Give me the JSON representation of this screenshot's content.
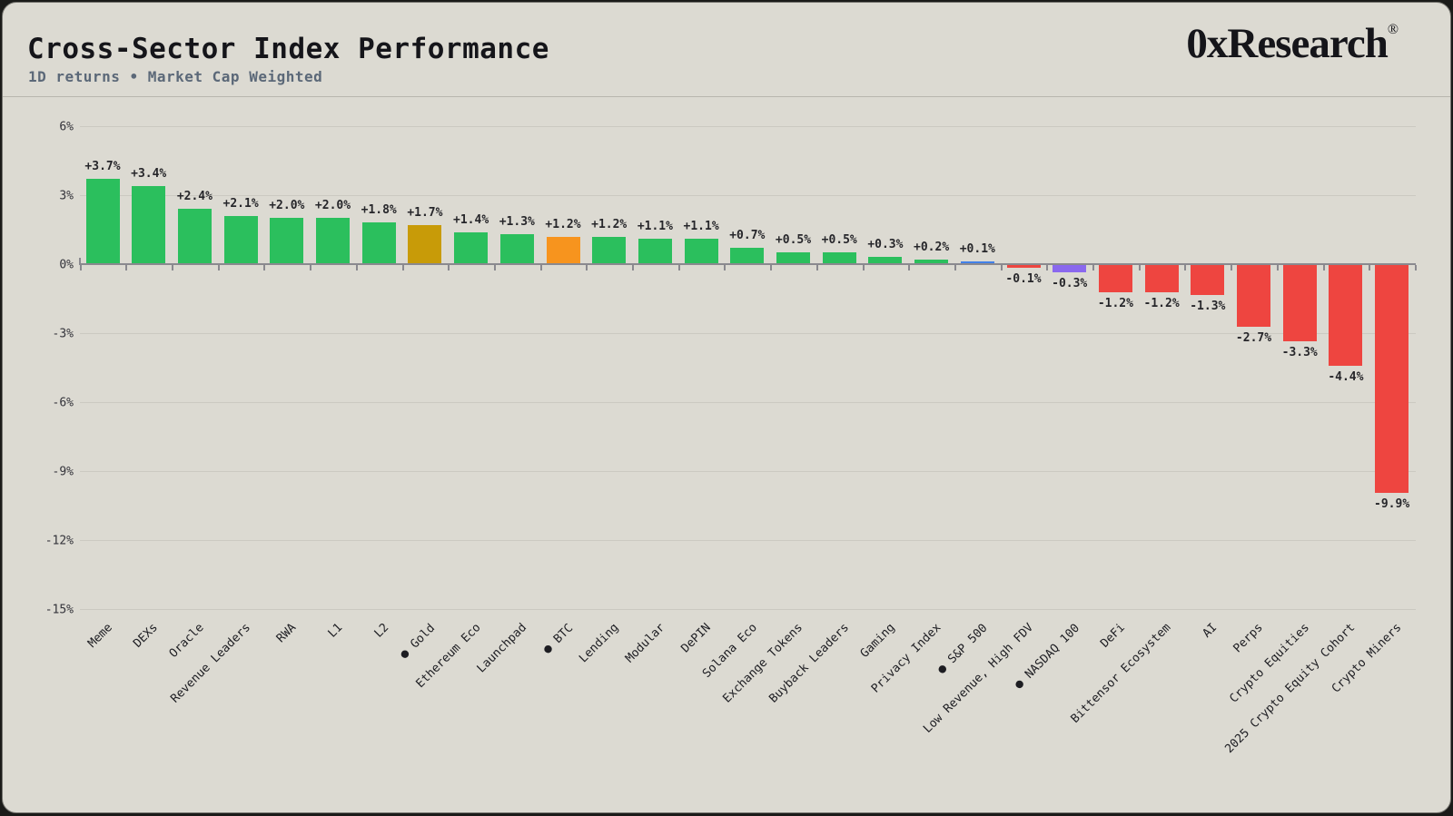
{
  "header": {
    "title": "Cross-Sector Index Performance",
    "subtitle": "1D returns • Market Cap Weighted",
    "brand": {
      "name": "0xResearch",
      "registered_mark": "®"
    }
  },
  "chart_data": {
    "type": "bar",
    "title": "Cross-Sector Index Performance",
    "subtitle": "1D returns • Market Cap Weighted",
    "unit": "percent_daily_return",
    "ylim": [
      -15,
      6
    ],
    "grid": true,
    "legend": "none",
    "benchmark_dot": "●",
    "palette": {
      "green": "#2bbf5d",
      "gold": "#c89b08",
      "orange": "#f7941e",
      "blue": "#4281e8",
      "purple": "#8a68ee",
      "red": "#ee4540",
      "background": "#dcdad2"
    },
    "yticks": [
      {
        "label": "6%",
        "value": 6
      },
      {
        "label": "3%",
        "value": 3
      },
      {
        "label": "0%",
        "value": 0
      },
      {
        "label": "-3%",
        "value": -3
      },
      {
        "label": "-6%",
        "value": -6
      },
      {
        "label": "-9%",
        "value": -9
      },
      {
        "label": "-12%",
        "value": -12
      },
      {
        "label": "-15%",
        "value": -15
      }
    ],
    "bars": [
      {
        "label": "Meme",
        "value": 3.7,
        "display": "+3.7%",
        "color": "green",
        "benchmark": false
      },
      {
        "label": "DEXs",
        "value": 3.4,
        "display": "+3.4%",
        "color": "green",
        "benchmark": false
      },
      {
        "label": "Oracle",
        "value": 2.4,
        "display": "+2.4%",
        "color": "green",
        "benchmark": false
      },
      {
        "label": "Revenue Leaders",
        "value": 2.1,
        "display": "+2.1%",
        "color": "green",
        "benchmark": false
      },
      {
        "label": "RWA",
        "value": 2.0,
        "display": "+2.0%",
        "color": "green",
        "benchmark": false
      },
      {
        "label": "L1",
        "value": 2.0,
        "display": "+2.0%",
        "color": "green",
        "benchmark": false
      },
      {
        "label": "L2",
        "value": 1.8,
        "display": "+1.8%",
        "color": "green",
        "benchmark": false
      },
      {
        "label": "Gold",
        "value": 1.7,
        "display": "+1.7%",
        "color": "gold",
        "benchmark": true
      },
      {
        "label": "Ethereum Eco",
        "value": 1.4,
        "display": "+1.4%",
        "color": "green",
        "benchmark": false
      },
      {
        "label": "Launchpad",
        "value": 1.3,
        "display": "+1.3%",
        "color": "green",
        "benchmark": false
      },
      {
        "label": "BTC",
        "value": 1.2,
        "display": "+1.2%",
        "color": "orange",
        "benchmark": true
      },
      {
        "label": "Lending",
        "value": 1.2,
        "display": "+1.2%",
        "color": "green",
        "benchmark": false
      },
      {
        "label": "Modular",
        "value": 1.1,
        "display": "+1.1%",
        "color": "green",
        "benchmark": false
      },
      {
        "label": "DePIN",
        "value": 1.1,
        "display": "+1.1%",
        "color": "green",
        "benchmark": false
      },
      {
        "label": "Solana Eco",
        "value": 0.7,
        "display": "+0.7%",
        "color": "green",
        "benchmark": false
      },
      {
        "label": "Exchange Tokens",
        "value": 0.5,
        "display": "+0.5%",
        "color": "green",
        "benchmark": false
      },
      {
        "label": "Buyback Leaders",
        "value": 0.5,
        "display": "+0.5%",
        "color": "green",
        "benchmark": false
      },
      {
        "label": "Gaming",
        "value": 0.3,
        "display": "+0.3%",
        "color": "green",
        "benchmark": false
      },
      {
        "label": "Privacy Index",
        "value": 0.2,
        "display": "+0.2%",
        "color": "green",
        "benchmark": false
      },
      {
        "label": "S&P 500",
        "value": 0.1,
        "display": "+0.1%",
        "color": "blue",
        "benchmark": true
      },
      {
        "label": "Low Revenue, High FDV",
        "value": -0.1,
        "display": "-0.1%",
        "color": "red",
        "benchmark": false
      },
      {
        "label": "NASDAQ 100",
        "value": -0.3,
        "display": "-0.3%",
        "color": "purple",
        "benchmark": true
      },
      {
        "label": "DeFi",
        "value": -1.2,
        "display": "-1.2%",
        "color": "red",
        "benchmark": false
      },
      {
        "label": "Bittensor Ecosystem",
        "value": -1.2,
        "display": "-1.2%",
        "color": "red",
        "benchmark": false
      },
      {
        "label": "AI",
        "value": -1.3,
        "display": "-1.3%",
        "color": "red",
        "benchmark": false
      },
      {
        "label": "Perps",
        "value": -2.7,
        "display": "-2.7%",
        "color": "red",
        "benchmark": false
      },
      {
        "label": "Crypto Equities",
        "value": -3.3,
        "display": "-3.3%",
        "color": "red",
        "benchmark": false
      },
      {
        "label": "2025 Crypto Equity Cohort",
        "value": -4.4,
        "display": "-4.4%",
        "color": "red",
        "benchmark": false
      },
      {
        "label": "Crypto Miners",
        "value": -9.9,
        "display": "-9.9%",
        "color": "red",
        "benchmark": false
      }
    ]
  }
}
